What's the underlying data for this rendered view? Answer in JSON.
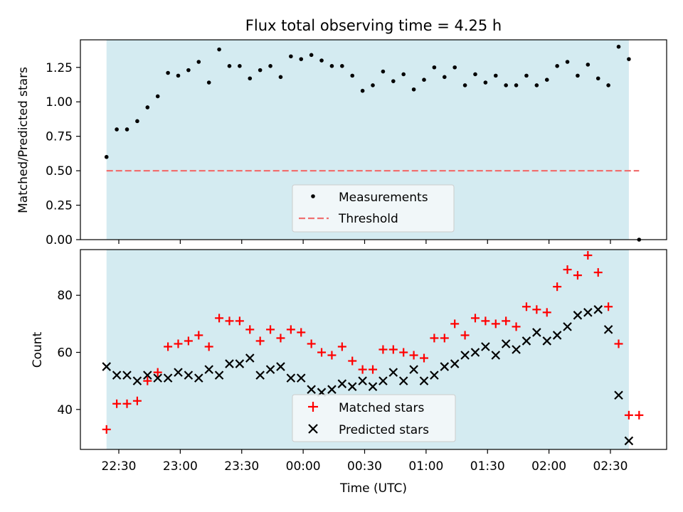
{
  "figure": {
    "title": "Flux total observing time = 4.25 h",
    "xlabel": "Time (UTC)",
    "x_tick_labels": [
      "22:30",
      "23:00",
      "23:30",
      "00:00",
      "00:30",
      "01:00",
      "01:30",
      "02:00",
      "02:30"
    ],
    "shaded_color": "#d4ebf1",
    "shaded_range": [
      "22:24",
      "02:39"
    ]
  },
  "chart_data": [
    {
      "type": "scatter",
      "ylabel": "Matched/Predicted stars",
      "ylim": [
        0,
        1.45
      ],
      "y_ticks": [
        "0.00",
        "0.25",
        "0.50",
        "0.75",
        "1.00",
        "1.25"
      ],
      "legend": "bottom-center",
      "threshold": {
        "name": "Threshold",
        "value": 0.5,
        "x_range": [
          "22:24",
          "02:44"
        ],
        "color": "#f07070"
      },
      "series": [
        {
          "name": "Measurements",
          "color": "#000000",
          "points": [
            [
              "22:24",
              0.6
            ],
            [
              "22:29",
              0.8
            ],
            [
              "22:34",
              0.8
            ],
            [
              "22:39",
              0.86
            ],
            [
              "22:44",
              0.96
            ],
            [
              "22:49",
              1.04
            ],
            [
              "22:54",
              1.21
            ],
            [
              "22:59",
              1.19
            ],
            [
              "23:04",
              1.23
            ],
            [
              "23:09",
              1.29
            ],
            [
              "23:14",
              1.14
            ],
            [
              "23:19",
              1.38
            ],
            [
              "23:24",
              1.26
            ],
            [
              "23:29",
              1.26
            ],
            [
              "23:34",
              1.17
            ],
            [
              "23:39",
              1.23
            ],
            [
              "23:44",
              1.26
            ],
            [
              "23:49",
              1.18
            ],
            [
              "23:54",
              1.33
            ],
            [
              "23:59",
              1.31
            ],
            [
              "00:04",
              1.34
            ],
            [
              "00:09",
              1.3
            ],
            [
              "00:14",
              1.26
            ],
            [
              "00:19",
              1.26
            ],
            [
              "00:24",
              1.19
            ],
            [
              "00:29",
              1.08
            ],
            [
              "00:34",
              1.12
            ],
            [
              "00:39",
              1.22
            ],
            [
              "00:44",
              1.15
            ],
            [
              "00:49",
              1.2
            ],
            [
              "00:54",
              1.09
            ],
            [
              "00:59",
              1.16
            ],
            [
              "01:04",
              1.25
            ],
            [
              "01:09",
              1.18
            ],
            [
              "01:14",
              1.25
            ],
            [
              "01:19",
              1.12
            ],
            [
              "01:24",
              1.2
            ],
            [
              "01:29",
              1.14
            ],
            [
              "01:34",
              1.19
            ],
            [
              "01:39",
              1.12
            ],
            [
              "01:44",
              1.12
            ],
            [
              "01:49",
              1.19
            ],
            [
              "01:54",
              1.12
            ],
            [
              "01:59",
              1.16
            ],
            [
              "02:04",
              1.26
            ],
            [
              "02:09",
              1.29
            ],
            [
              "02:14",
              1.19
            ],
            [
              "02:19",
              1.27
            ],
            [
              "02:24",
              1.17
            ],
            [
              "02:29",
              1.12
            ],
            [
              "02:34",
              1.4
            ],
            [
              "02:39",
              1.31
            ],
            [
              "02:44",
              0.0
            ]
          ]
        }
      ]
    },
    {
      "type": "scatter",
      "ylabel": "Count",
      "ylim": [
        26,
        96
      ],
      "y_ticks": [
        "40",
        "60",
        "80"
      ],
      "legend": "bottom-center",
      "series": [
        {
          "name": "Matched stars",
          "color": "#ff0000",
          "marker": "plus",
          "points": [
            [
              "22:24",
              33
            ],
            [
              "22:29",
              42
            ],
            [
              "22:34",
              42
            ],
            [
              "22:39",
              43
            ],
            [
              "22:44",
              50
            ],
            [
              "22:49",
              53
            ],
            [
              "22:54",
              62
            ],
            [
              "22:59",
              63
            ],
            [
              "23:04",
              64
            ],
            [
              "23:09",
              66
            ],
            [
              "23:14",
              62
            ],
            [
              "23:19",
              72
            ],
            [
              "23:24",
              71
            ],
            [
              "23:29",
              71
            ],
            [
              "23:34",
              68
            ],
            [
              "23:39",
              64
            ],
            [
              "23:44",
              68
            ],
            [
              "23:49",
              65
            ],
            [
              "23:54",
              68
            ],
            [
              "23:59",
              67
            ],
            [
              "00:04",
              63
            ],
            [
              "00:09",
              60
            ],
            [
              "00:14",
              59
            ],
            [
              "00:19",
              62
            ],
            [
              "00:24",
              57
            ],
            [
              "00:29",
              54
            ],
            [
              "00:34",
              54
            ],
            [
              "00:39",
              61
            ],
            [
              "00:44",
              61
            ],
            [
              "00:49",
              60
            ],
            [
              "00:54",
              59
            ],
            [
              "00:59",
              58
            ],
            [
              "01:04",
              65
            ],
            [
              "01:09",
              65
            ],
            [
              "01:14",
              70
            ],
            [
              "01:19",
              66
            ],
            [
              "01:24",
              72
            ],
            [
              "01:29",
              71
            ],
            [
              "01:34",
              70
            ],
            [
              "01:39",
              71
            ],
            [
              "01:44",
              69
            ],
            [
              "01:49",
              76
            ],
            [
              "01:54",
              75
            ],
            [
              "01:59",
              74
            ],
            [
              "02:04",
              83
            ],
            [
              "02:09",
              89
            ],
            [
              "02:14",
              87
            ],
            [
              "02:19",
              94
            ],
            [
              "02:24",
              88
            ],
            [
              "02:29",
              76
            ],
            [
              "02:34",
              63
            ],
            [
              "02:39",
              38
            ],
            [
              "02:44",
              38
            ]
          ]
        },
        {
          "name": "Predicted stars",
          "color": "#000000",
          "marker": "x",
          "points": [
            [
              "22:24",
              55
            ],
            [
              "22:29",
              52
            ],
            [
              "22:34",
              52
            ],
            [
              "22:39",
              50
            ],
            [
              "22:44",
              52
            ],
            [
              "22:49",
              51
            ],
            [
              "22:54",
              51
            ],
            [
              "22:59",
              53
            ],
            [
              "23:04",
              52
            ],
            [
              "23:09",
              51
            ],
            [
              "23:14",
              54
            ],
            [
              "23:19",
              52
            ],
            [
              "23:24",
              56
            ],
            [
              "23:29",
              56
            ],
            [
              "23:34",
              58
            ],
            [
              "23:39",
              52
            ],
            [
              "23:44",
              54
            ],
            [
              "23:49",
              55
            ],
            [
              "23:54",
              51
            ],
            [
              "23:59",
              51
            ],
            [
              "00:04",
              47
            ],
            [
              "00:09",
              46
            ],
            [
              "00:14",
              47
            ],
            [
              "00:19",
              49
            ],
            [
              "00:24",
              48
            ],
            [
              "00:29",
              50
            ],
            [
              "00:34",
              48
            ],
            [
              "00:39",
              50
            ],
            [
              "00:44",
              53
            ],
            [
              "00:49",
              50
            ],
            [
              "00:54",
              54
            ],
            [
              "00:59",
              50
            ],
            [
              "01:04",
              52
            ],
            [
              "01:09",
              55
            ],
            [
              "01:14",
              56
            ],
            [
              "01:19",
              59
            ],
            [
              "01:24",
              60
            ],
            [
              "01:29",
              62
            ],
            [
              "01:34",
              59
            ],
            [
              "01:39",
              63
            ],
            [
              "01:44",
              61
            ],
            [
              "01:49",
              64
            ],
            [
              "01:54",
              67
            ],
            [
              "01:59",
              64
            ],
            [
              "02:04",
              66
            ],
            [
              "02:09",
              69
            ],
            [
              "02:14",
              73
            ],
            [
              "02:19",
              74
            ],
            [
              "02:24",
              75
            ],
            [
              "02:29",
              68
            ],
            [
              "02:34",
              45
            ],
            [
              "02:39",
              29
            ]
          ]
        }
      ]
    }
  ]
}
